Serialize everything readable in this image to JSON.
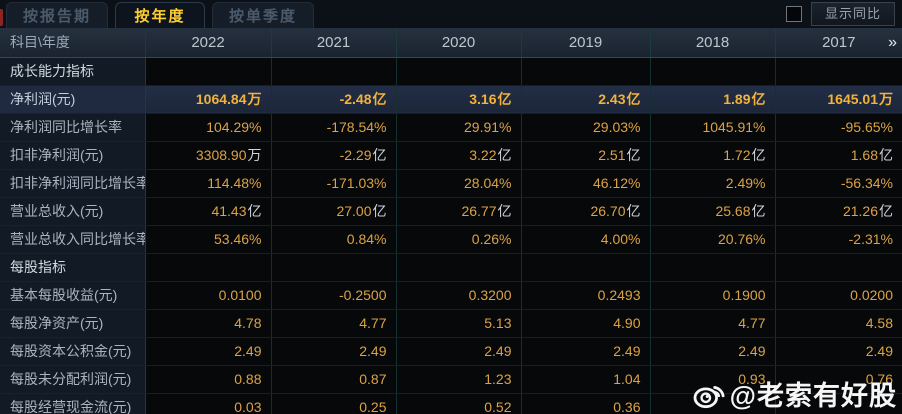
{
  "tabs": [
    {
      "label": "按报告期",
      "active": false
    },
    {
      "label": "按年度",
      "active": true
    },
    {
      "label": "按单季度",
      "active": false
    }
  ],
  "controls": {
    "show_yoy_label": "显示同比",
    "checkbox_checked": false
  },
  "table": {
    "corner_label": "科目\\年度",
    "years": [
      "2022",
      "2021",
      "2020",
      "2019",
      "2018",
      "2017"
    ],
    "more_icon": "»",
    "rows": [
      {
        "type": "section",
        "label": "成长能力指标"
      },
      {
        "type": "data",
        "label": "净利润(元)",
        "highlight": true,
        "values": [
          "1064.84万",
          "-2.48亿",
          "3.16亿",
          "2.43亿",
          "1.89亿",
          "1645.01万"
        ]
      },
      {
        "type": "data",
        "label": "净利润同比增长率",
        "values": [
          "104.29%",
          "-178.54%",
          "29.91%",
          "29.03%",
          "1045.91%",
          "-95.65%"
        ]
      },
      {
        "type": "data",
        "label": "扣非净利润(元)",
        "values": [
          "3308.90万",
          "-2.29亿",
          "3.22亿",
          "2.51亿",
          "1.72亿",
          "1.68亿"
        ]
      },
      {
        "type": "data",
        "label": "扣非净利润同比增长率",
        "values": [
          "114.48%",
          "-171.03%",
          "28.04%",
          "46.12%",
          "2.49%",
          "-56.34%"
        ]
      },
      {
        "type": "data",
        "label": "营业总收入(元)",
        "values": [
          "41.43亿",
          "27.00亿",
          "26.77亿",
          "26.70亿",
          "25.68亿",
          "21.26亿"
        ]
      },
      {
        "type": "data",
        "label": "营业总收入同比增长率",
        "values": [
          "53.46%",
          "0.84%",
          "0.26%",
          "4.00%",
          "20.76%",
          "-2.31%"
        ]
      },
      {
        "type": "section",
        "label": "每股指标"
      },
      {
        "type": "data",
        "label": "基本每股收益(元)",
        "values": [
          "0.0100",
          "-0.2500",
          "0.3200",
          "0.2493",
          "0.1900",
          "0.0200"
        ]
      },
      {
        "type": "data",
        "label": "每股净资产(元)",
        "values": [
          "4.78",
          "4.77",
          "5.13",
          "4.90",
          "4.77",
          "4.58"
        ]
      },
      {
        "type": "data",
        "label": "每股资本公积金(元)",
        "values": [
          "2.49",
          "2.49",
          "2.49",
          "2.49",
          "2.49",
          "2.49"
        ]
      },
      {
        "type": "data",
        "label": "每股未分配利润(元)",
        "values": [
          "0.88",
          "0.87",
          "1.23",
          "1.04",
          "0.93",
          "0.76"
        ]
      },
      {
        "type": "data",
        "label": "每股经营现金流(元)",
        "values": [
          "0.03",
          "0.25",
          "0.52",
          "0.36",
          "",
          ""
        ]
      }
    ]
  },
  "watermark": {
    "text": "@老索有好股",
    "icon": "weibo-icon"
  },
  "colors": {
    "value_gold": "#dca246",
    "highlight_gold": "#f3b23c",
    "active_tab_text": "#ffd02e",
    "highlight_row_bg": "#1f2a40",
    "header_bg": "#202b38",
    "divider_teal": "#1d3b3b",
    "watermark_white": "#f6f6f6"
  }
}
